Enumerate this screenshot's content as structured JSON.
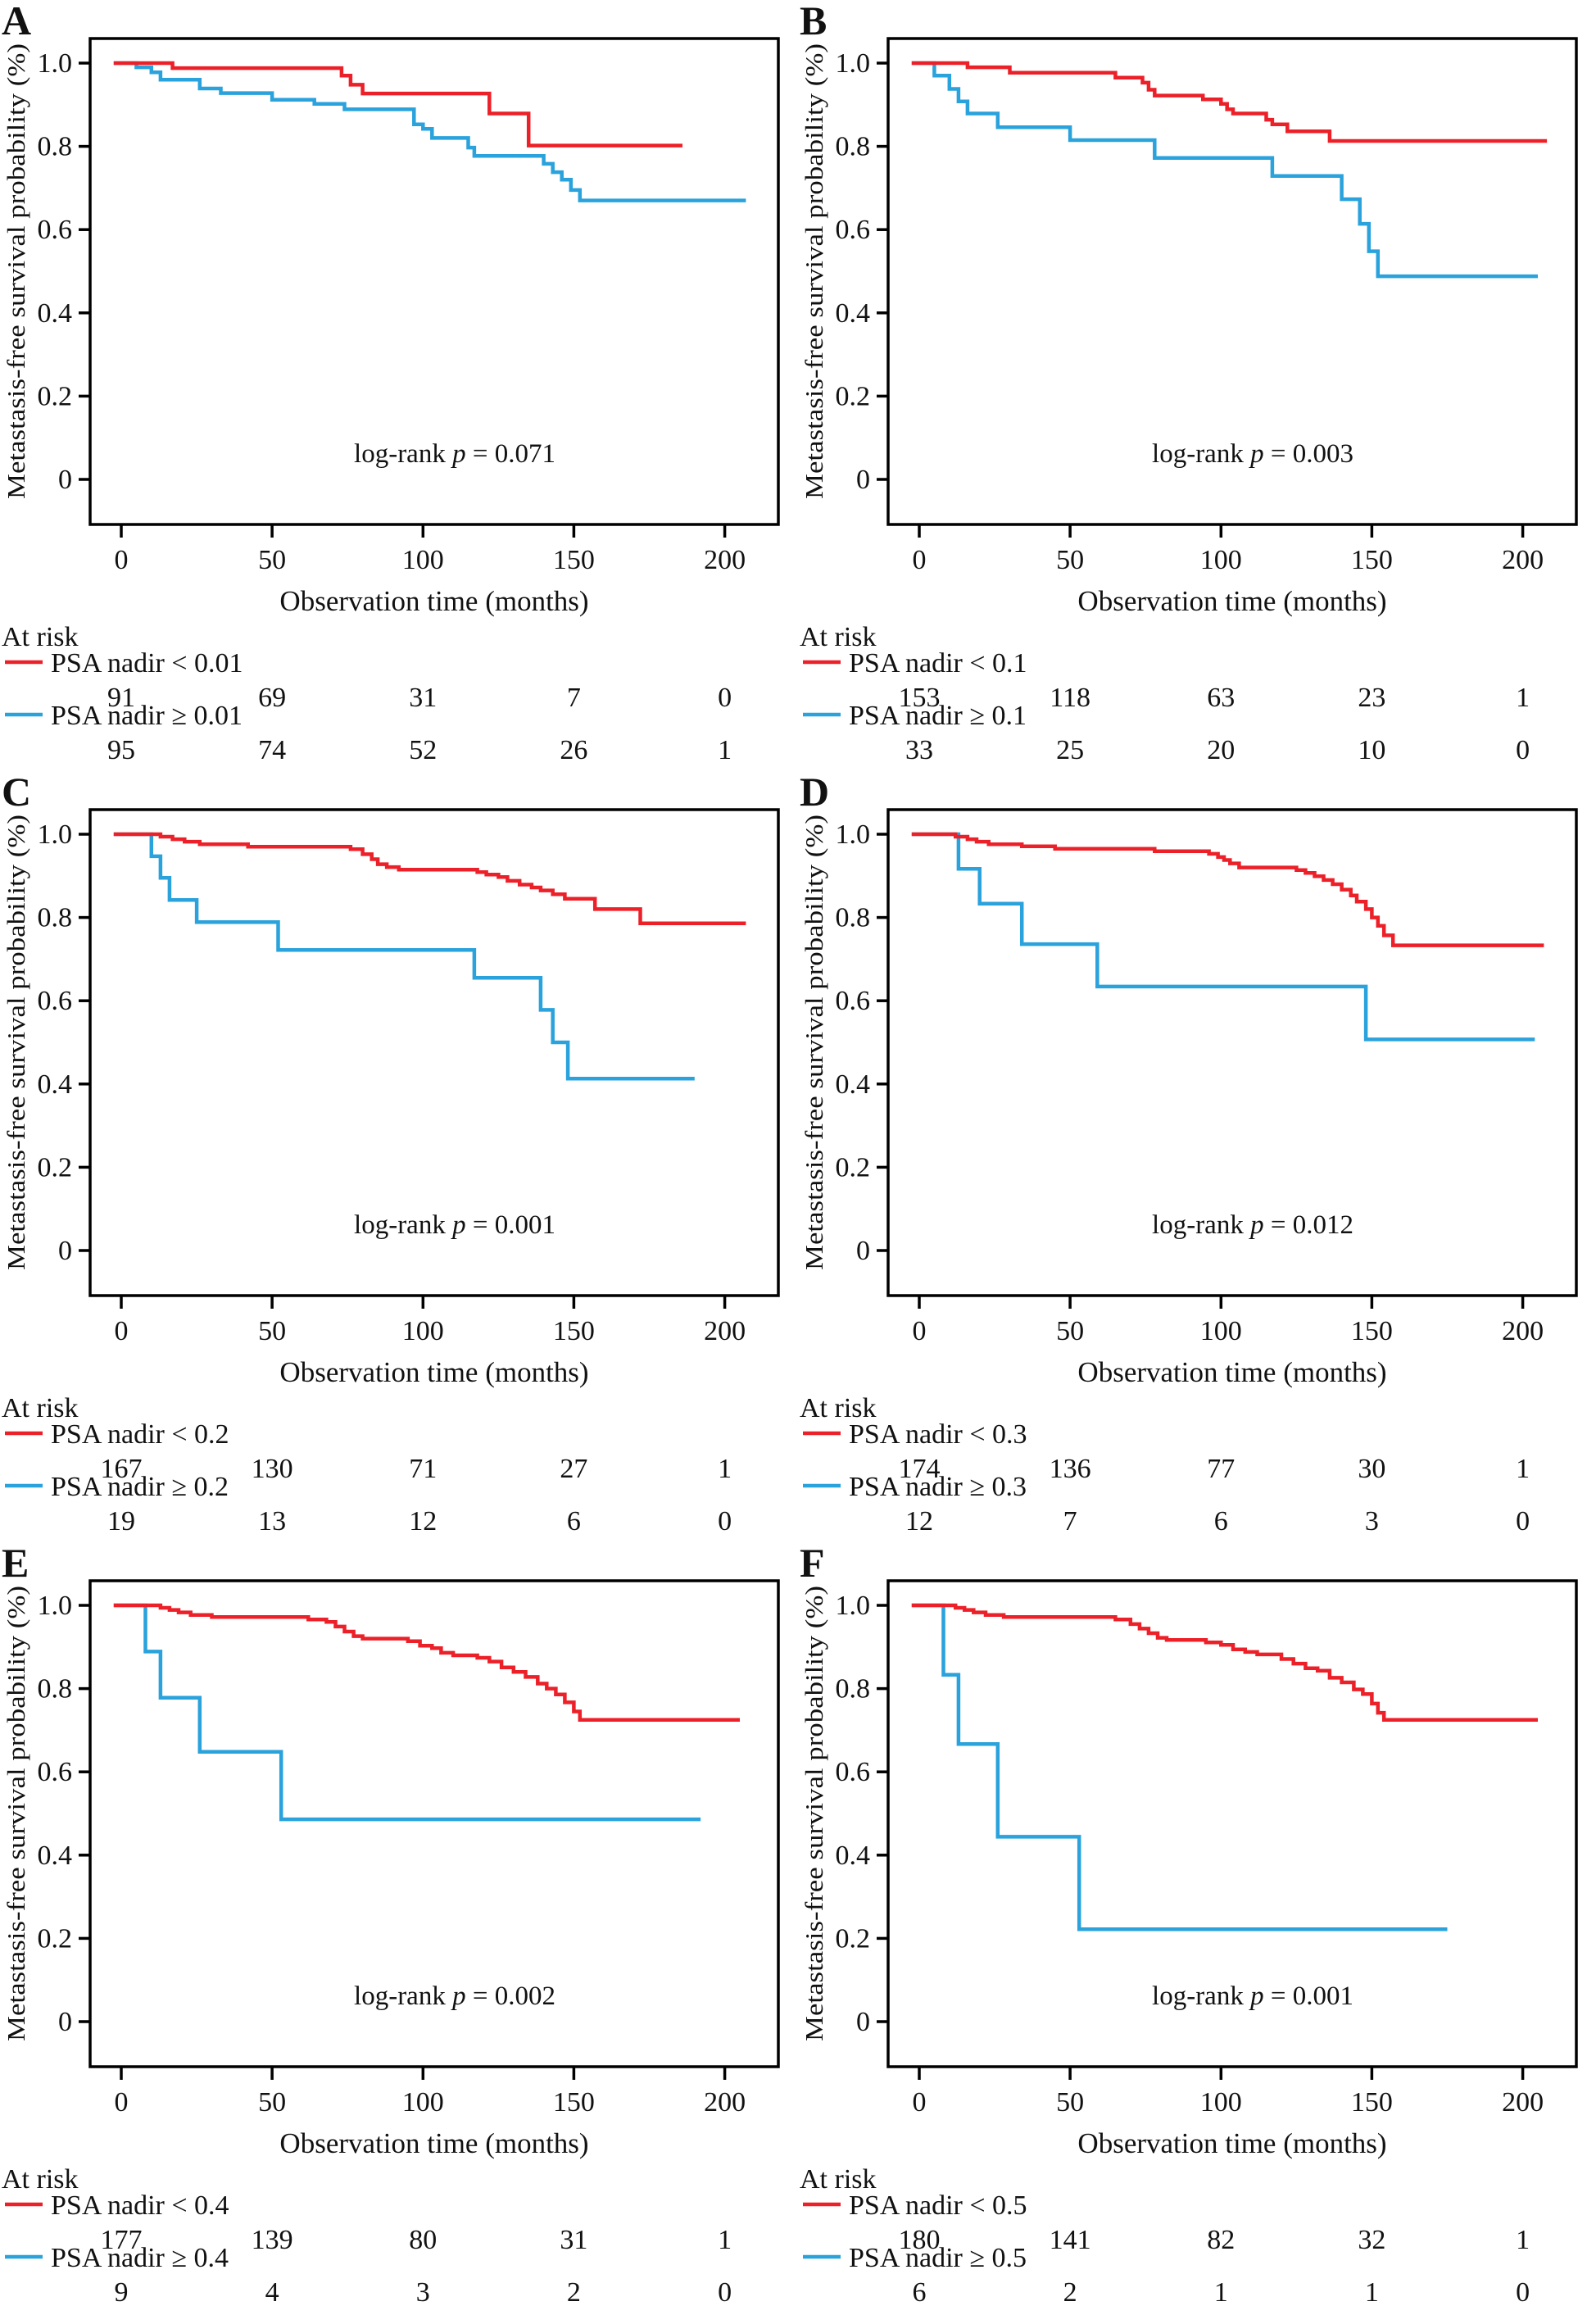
{
  "figure": {
    "background": "#ffffff",
    "ylabel": "Metastasis-free survival probability (%)",
    "xlabel": "Observation time (months)",
    "at_risk_label": "At risk",
    "x_ticks": [
      0,
      50,
      100,
      150,
      200
    ],
    "y_tick_labels": [
      "1.0",
      "0.8",
      "0.6",
      "0.4",
      "0.2",
      "0"
    ],
    "y_tick_values": [
      1.0,
      0.8,
      0.6,
      0.4,
      0.2,
      0
    ],
    "colors": {
      "red": "#ec2028",
      "blue": "#2aa2dc",
      "axis": "#000000",
      "text": "#111111"
    }
  },
  "chart_data": [
    {
      "panel": "A",
      "type": "line",
      "x_range": [
        0,
        210
      ],
      "y_range": [
        0,
        1
      ],
      "log_rank": {
        "prefix": "log-rank ",
        "var": "p",
        "rest": " = 0.071"
      },
      "series": [
        {
          "name": "PSA nadir < 0.01",
          "color": "red",
          "end": 186,
          "at_risk": [
            91,
            69,
            31,
            7,
            0
          ],
          "steps": [
            [
              0,
              1
            ],
            [
              17,
              0.988
            ],
            [
              73,
              0.97
            ],
            [
              76,
              0.948
            ],
            [
              80,
              0.927
            ],
            [
              122,
              0.879
            ],
            [
              135,
              0.802
            ]
          ]
        },
        {
          "name": "PSA nadir ≥ 0.01",
          "color": "blue",
          "end": 207,
          "at_risk": [
            95,
            74,
            52,
            26,
            1
          ],
          "steps": [
            [
              0,
              1
            ],
            [
              5,
              0.99
            ],
            [
              10,
              0.978
            ],
            [
              13,
              0.96
            ],
            [
              26,
              0.939
            ],
            [
              33,
              0.928
            ],
            [
              50,
              0.912
            ],
            [
              64,
              0.902
            ],
            [
              74,
              0.889
            ],
            [
              97,
              0.853
            ],
            [
              100,
              0.842
            ],
            [
              103,
              0.82
            ],
            [
              115,
              0.797
            ],
            [
              117,
              0.777
            ],
            [
              140,
              0.758
            ],
            [
              143,
              0.738
            ],
            [
              146,
              0.72
            ],
            [
              149,
              0.695
            ],
            [
              152,
              0.67
            ]
          ]
        }
      ]
    },
    {
      "panel": "B",
      "type": "line",
      "x_range": [
        0,
        210
      ],
      "y_range": [
        0,
        1
      ],
      "log_rank": {
        "prefix": "log-rank ",
        "var": "p",
        "rest": " = 0.003"
      },
      "series": [
        {
          "name": "PSA nadir < 0.1",
          "color": "red",
          "end": 208,
          "at_risk": [
            153,
            118,
            63,
            23,
            1
          ],
          "steps": [
            [
              0,
              1
            ],
            [
              16,
              0.99
            ],
            [
              30,
              0.977
            ],
            [
              65,
              0.965
            ],
            [
              74,
              0.953
            ],
            [
              76,
              0.936
            ],
            [
              78,
              0.922
            ],
            [
              94,
              0.913
            ],
            [
              100,
              0.902
            ],
            [
              102,
              0.889
            ],
            [
              104,
              0.879
            ],
            [
              115,
              0.864
            ],
            [
              117,
              0.853
            ],
            [
              122,
              0.836
            ],
            [
              136,
              0.813
            ]
          ]
        },
        {
          "name": "PSA nadir ≥ 0.1",
          "color": "blue",
          "end": 205,
          "at_risk": [
            33,
            25,
            20,
            10,
            0
          ],
          "steps": [
            [
              0,
              1
            ],
            [
              5,
              0.97
            ],
            [
              10,
              0.938
            ],
            [
              13,
              0.908
            ],
            [
              16,
              0.879
            ],
            [
              26,
              0.846
            ],
            [
              50,
              0.815
            ],
            [
              78,
              0.772
            ],
            [
              117,
              0.729
            ],
            [
              140,
              0.673
            ],
            [
              146,
              0.614
            ],
            [
              149,
              0.548
            ],
            [
              152,
              0.488
            ]
          ]
        }
      ]
    },
    {
      "panel": "C",
      "type": "line",
      "x_range": [
        0,
        210
      ],
      "y_range": [
        0,
        1
      ],
      "log_rank": {
        "prefix": "log-rank ",
        "var": "p",
        "rest": " = 0.001"
      },
      "series": [
        {
          "name": "PSA nadir < 0.2",
          "color": "red",
          "end": 207,
          "at_risk": [
            167,
            130,
            71,
            27,
            1
          ],
          "steps": [
            [
              0,
              1
            ],
            [
              13,
              0.994
            ],
            [
              17,
              0.988
            ],
            [
              21,
              0.982
            ],
            [
              26,
              0.976
            ],
            [
              42,
              0.97
            ],
            [
              76,
              0.964
            ],
            [
              80,
              0.952
            ],
            [
              83,
              0.94
            ],
            [
              85,
              0.928
            ],
            [
              88,
              0.921
            ],
            [
              92,
              0.915
            ],
            [
              118,
              0.909
            ],
            [
              121,
              0.903
            ],
            [
              125,
              0.897
            ],
            [
              128,
              0.888
            ],
            [
              132,
              0.879
            ],
            [
              136,
              0.872
            ],
            [
              139,
              0.865
            ],
            [
              143,
              0.856
            ],
            [
              147,
              0.845
            ],
            [
              157,
              0.82
            ],
            [
              172,
              0.786
            ]
          ]
        },
        {
          "name": "PSA nadir ≥ 0.2",
          "color": "blue",
          "end": 190,
          "at_risk": [
            19,
            13,
            12,
            6,
            0
          ],
          "steps": [
            [
              0,
              1
            ],
            [
              10,
              0.947
            ],
            [
              13,
              0.895
            ],
            [
              16,
              0.842
            ],
            [
              25,
              0.789
            ],
            [
              52,
              0.722
            ],
            [
              117,
              0.655
            ],
            [
              139,
              0.578
            ],
            [
              143,
              0.5
            ],
            [
              148,
              0.413
            ]
          ]
        }
      ]
    },
    {
      "panel": "D",
      "type": "line",
      "x_range": [
        0,
        210
      ],
      "y_range": [
        0,
        1
      ],
      "log_rank": {
        "prefix": "log-rank ",
        "var": "p",
        "rest": " = 0.012"
      },
      "series": [
        {
          "name": "PSA nadir < 0.3",
          "color": "red",
          "end": 207,
          "at_risk": [
            174,
            136,
            77,
            30,
            1
          ],
          "steps": [
            [
              0,
              1
            ],
            [
              12,
              0.994
            ],
            [
              16,
              0.988
            ],
            [
              19,
              0.982
            ],
            [
              23,
              0.976
            ],
            [
              34,
              0.971
            ],
            [
              45,
              0.965
            ],
            [
              78,
              0.959
            ],
            [
              96,
              0.953
            ],
            [
              99,
              0.945
            ],
            [
              101,
              0.938
            ],
            [
              103,
              0.93
            ],
            [
              106,
              0.92
            ],
            [
              125,
              0.914
            ],
            [
              128,
              0.907
            ],
            [
              131,
              0.899
            ],
            [
              134,
              0.89
            ],
            [
              137,
              0.88
            ],
            [
              140,
              0.867
            ],
            [
              143,
              0.853
            ],
            [
              145,
              0.838
            ],
            [
              148,
              0.82
            ],
            [
              150,
              0.8
            ],
            [
              152,
              0.78
            ],
            [
              154,
              0.757
            ],
            [
              157,
              0.733
            ]
          ]
        },
        {
          "name": "PSA nadir ≥ 0.3",
          "color": "blue",
          "end": 204,
          "at_risk": [
            12,
            7,
            6,
            3,
            0
          ],
          "steps": [
            [
              0,
              1
            ],
            [
              13,
              0.917
            ],
            [
              20,
              0.833
            ],
            [
              34,
              0.736
            ],
            [
              59,
              0.634
            ],
            [
              148,
              0.507
            ]
          ]
        }
      ]
    },
    {
      "panel": "E",
      "type": "line",
      "x_range": [
        0,
        210
      ],
      "y_range": [
        0,
        1
      ],
      "log_rank": {
        "prefix": "log-rank ",
        "var": "p",
        "rest": " = 0.002"
      },
      "series": [
        {
          "name": "PSA nadir < 0.4",
          "color": "red",
          "end": 205,
          "at_risk": [
            177,
            139,
            80,
            31,
            1
          ],
          "steps": [
            [
              0,
              1
            ],
            [
              13,
              0.994
            ],
            [
              16,
              0.989
            ],
            [
              19,
              0.983
            ],
            [
              23,
              0.977
            ],
            [
              30,
              0.972
            ],
            [
              62,
              0.966
            ],
            [
              68,
              0.96
            ],
            [
              71,
              0.949
            ],
            [
              74,
              0.937
            ],
            [
              77,
              0.926
            ],
            [
              80,
              0.92
            ],
            [
              95,
              0.914
            ],
            [
              99,
              0.903
            ],
            [
              103,
              0.897
            ],
            [
              106,
              0.886
            ],
            [
              110,
              0.88
            ],
            [
              118,
              0.874
            ],
            [
              122,
              0.865
            ],
            [
              126,
              0.851
            ],
            [
              130,
              0.84
            ],
            [
              134,
              0.828
            ],
            [
              138,
              0.812
            ],
            [
              141,
              0.8
            ],
            [
              144,
              0.786
            ],
            [
              147,
              0.767
            ],
            [
              150,
              0.745
            ],
            [
              152,
              0.725
            ]
          ]
        },
        {
          "name": "PSA nadir ≥ 0.4",
          "color": "blue",
          "end": 192,
          "at_risk": [
            9,
            4,
            3,
            2,
            0
          ],
          "steps": [
            [
              0,
              1
            ],
            [
              8,
              0.889
            ],
            [
              13,
              0.778
            ],
            [
              26,
              0.648
            ],
            [
              53,
              0.486
            ]
          ]
        }
      ]
    },
    {
      "panel": "F",
      "type": "line",
      "x_range": [
        0,
        210
      ],
      "y_range": [
        0,
        1
      ],
      "log_rank": {
        "prefix": "log-rank ",
        "var": "p",
        "rest": " = 0.001"
      },
      "series": [
        {
          "name": "PSA nadir < 0.5",
          "color": "red",
          "end": 205,
          "at_risk": [
            180,
            141,
            82,
            32,
            1
          ],
          "steps": [
            [
              0,
              1
            ],
            [
              12,
              0.994
            ],
            [
              15,
              0.989
            ],
            [
              18,
              0.983
            ],
            [
              22,
              0.977
            ],
            [
              28,
              0.972
            ],
            [
              65,
              0.966
            ],
            [
              70,
              0.955
            ],
            [
              73,
              0.944
            ],
            [
              76,
              0.933
            ],
            [
              79,
              0.922
            ],
            [
              82,
              0.917
            ],
            [
              95,
              0.911
            ],
            [
              100,
              0.905
            ],
            [
              104,
              0.894
            ],
            [
              108,
              0.888
            ],
            [
              112,
              0.882
            ],
            [
              120,
              0.871
            ],
            [
              124,
              0.86
            ],
            [
              128,
              0.849
            ],
            [
              132,
              0.843
            ],
            [
              136,
              0.826
            ],
            [
              140,
              0.815
            ],
            [
              144,
              0.798
            ],
            [
              147,
              0.787
            ],
            [
              150,
              0.764
            ],
            [
              152,
              0.742
            ],
            [
              154,
              0.725
            ]
          ]
        },
        {
          "name": "PSA nadir ≥ 0.5",
          "color": "blue",
          "end": 175,
          "at_risk": [
            6,
            2,
            1,
            1,
            0
          ],
          "steps": [
            [
              0,
              1
            ],
            [
              8,
              0.833
            ],
            [
              13,
              0.667
            ],
            [
              26,
              0.444
            ],
            [
              53,
              0.222
            ]
          ]
        }
      ]
    }
  ]
}
